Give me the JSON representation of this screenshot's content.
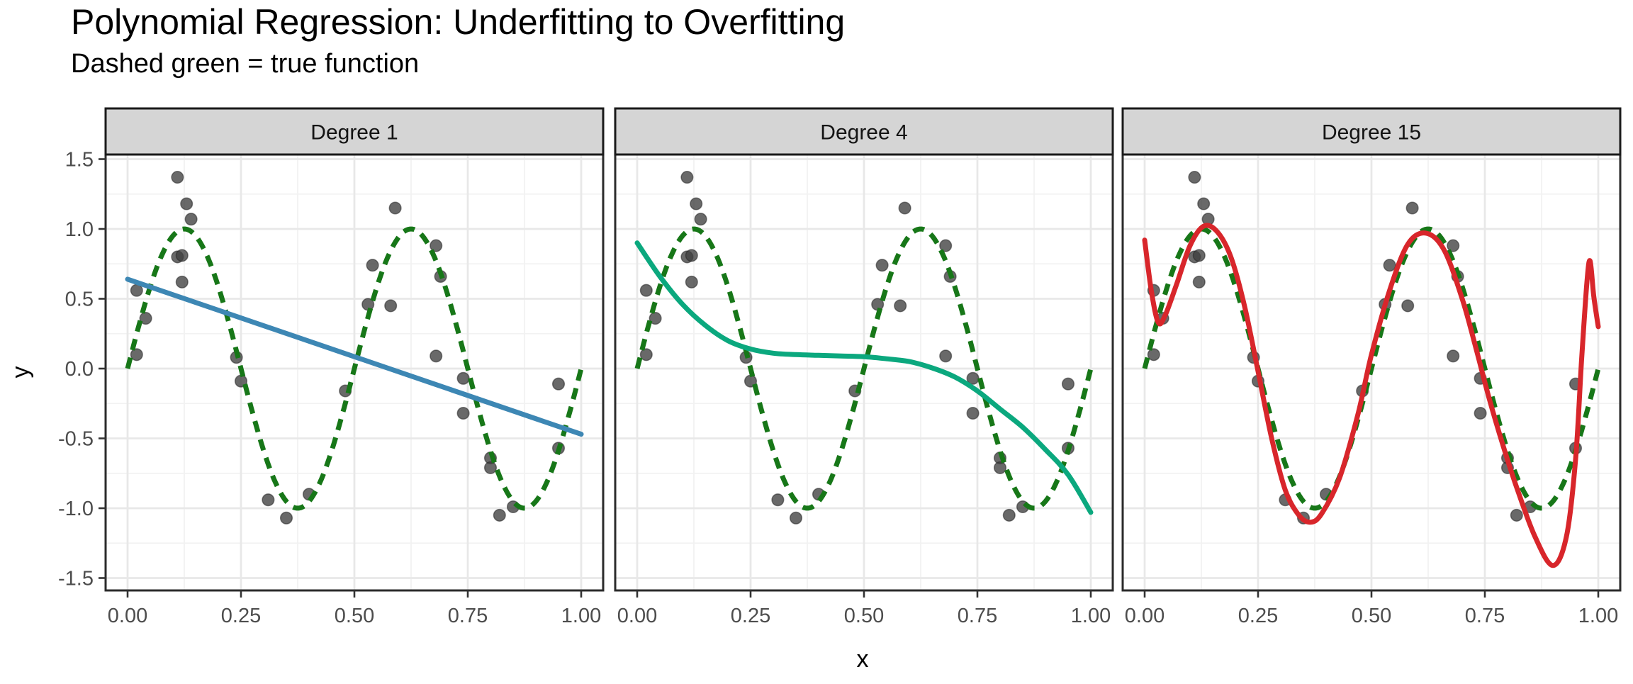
{
  "title": "Polynomial Regression: Underfitting to Overfitting",
  "subtitle": "Dashed green = true function",
  "chart_data": {
    "type": "scatter",
    "title": "Polynomial Regression: Underfitting to Overfitting",
    "subtitle": "Dashed green = true function",
    "xlabel": "x",
    "ylabel": "y",
    "xlim": [
      -0.05,
      1.05
    ],
    "ylim": [
      -1.59,
      1.53
    ],
    "grid": {
      "major_x_step": 0.25,
      "minor_x_step": 0.125,
      "major_y_step": 0.5,
      "minor_y_step": 0.25
    },
    "legend_position": "none",
    "x_ticks": {
      "values": [
        0,
        0.25,
        0.5,
        0.75,
        1.0
      ],
      "labels": [
        "0.00",
        "0.25",
        "0.50",
        "0.75",
        "1.00"
      ]
    },
    "y_ticks": {
      "values": [
        1.5,
        1.0,
        0.5,
        0.0,
        -0.5,
        -1.0,
        -1.5
      ],
      "labels": [
        "1.5",
        "1.0",
        "0.5",
        "0.0",
        "-0.5",
        "-1.0",
        "-1.5"
      ]
    },
    "points": [
      [
        0.02,
        0.56
      ],
      [
        0.04,
        0.36
      ],
      [
        0.02,
        0.1
      ],
      [
        0.11,
        1.37
      ],
      [
        0.13,
        1.18
      ],
      [
        0.14,
        1.07
      ],
      [
        0.11,
        0.8
      ],
      [
        0.12,
        0.81
      ],
      [
        0.12,
        0.62
      ],
      [
        0.24,
        0.08
      ],
      [
        0.25,
        -0.09
      ],
      [
        0.31,
        -0.94
      ],
      [
        0.35,
        -1.07
      ],
      [
        0.4,
        -0.9
      ],
      [
        0.48,
        -0.16
      ],
      [
        0.53,
        0.46
      ],
      [
        0.54,
        0.74
      ],
      [
        0.58,
        0.45
      ],
      [
        0.59,
        1.15
      ],
      [
        0.68,
        0.88
      ],
      [
        0.69,
        0.66
      ],
      [
        0.68,
        0.09
      ],
      [
        0.74,
        -0.07
      ],
      [
        0.74,
        -0.32
      ],
      [
        0.8,
        -0.64
      ],
      [
        0.8,
        -0.71
      ],
      [
        0.82,
        -1.05
      ],
      [
        0.85,
        -0.99
      ],
      [
        0.95,
        -0.11
      ],
      [
        0.95,
        -0.57
      ]
    ],
    "point_style": {
      "fill": "#3f3f3f",
      "stroke": "#262626",
      "opacity": 0.78,
      "radius": 8.3
    },
    "true_function": {
      "label": "sin(4*pi*x)",
      "color": "#177718",
      "dash": [
        16,
        11
      ],
      "width": 7
    },
    "facets": [
      {
        "label": "Degree 1",
        "fit_color": "#3d87b4",
        "fit_points": [
          [
            0,
            0.64
          ],
          [
            1,
            -0.47
          ]
        ]
      },
      {
        "label": "Degree 4",
        "fit_color": "#0ba87e",
        "fit_points": [
          [
            0,
            0.9
          ],
          [
            0.05,
            0.66
          ],
          [
            0.1,
            0.46
          ],
          [
            0.15,
            0.31
          ],
          [
            0.2,
            0.2
          ],
          [
            0.25,
            0.14
          ],
          [
            0.3,
            0.11
          ],
          [
            0.35,
            0.1
          ],
          [
            0.4,
            0.095
          ],
          [
            0.45,
            0.09
          ],
          [
            0.5,
            0.085
          ],
          [
            0.55,
            0.07
          ],
          [
            0.6,
            0.05
          ],
          [
            0.65,
            0.005
          ],
          [
            0.7,
            -0.06
          ],
          [
            0.75,
            -0.16
          ],
          [
            0.8,
            -0.29
          ],
          [
            0.85,
            -0.42
          ],
          [
            0.9,
            -0.58
          ],
          [
            0.95,
            -0.76
          ],
          [
            1.0,
            -1.03
          ]
        ]
      },
      {
        "label": "Degree 15",
        "fit_color": "#d8262b",
        "fit_points": [
          [
            0,
            0.92
          ],
          [
            0.015,
            0.55
          ],
          [
            0.03,
            0.33
          ],
          [
            0.045,
            0.38
          ],
          [
            0.07,
            0.6
          ],
          [
            0.1,
            0.88
          ],
          [
            0.13,
            1.02
          ],
          [
            0.16,
            0.98
          ],
          [
            0.19,
            0.8
          ],
          [
            0.22,
            0.45
          ],
          [
            0.25,
            -0.02
          ],
          [
            0.28,
            -0.5
          ],
          [
            0.31,
            -0.87
          ],
          [
            0.34,
            -1.05
          ],
          [
            0.365,
            -1.1
          ],
          [
            0.39,
            -1.04
          ],
          [
            0.43,
            -0.78
          ],
          [
            0.47,
            -0.33
          ],
          [
            0.5,
            0.1
          ],
          [
            0.54,
            0.56
          ],
          [
            0.58,
            0.89
          ],
          [
            0.62,
            0.97
          ],
          [
            0.66,
            0.85
          ],
          [
            0.7,
            0.5
          ],
          [
            0.73,
            0.15
          ],
          [
            0.76,
            -0.22
          ],
          [
            0.79,
            -0.55
          ],
          [
            0.82,
            -0.85
          ],
          [
            0.86,
            -1.2
          ],
          [
            0.9,
            -1.41
          ],
          [
            0.93,
            -1.2
          ],
          [
            0.95,
            -0.65
          ],
          [
            0.963,
            0.05
          ],
          [
            0.975,
            0.62
          ],
          [
            0.982,
            0.77
          ],
          [
            0.99,
            0.52
          ],
          [
            1.0,
            0.3
          ]
        ]
      }
    ],
    "colors": {
      "strip_background": "#d5d5d5",
      "strip_border": "#1a1a1a",
      "strip_text": "#141414",
      "panel_border": "#2b2b2b",
      "grid_major": "#e8e8e8",
      "grid_minor": "#f2f2f2",
      "tick_text": "#4d4d4d",
      "tick_mark": "#333333",
      "title_text": "#000000"
    }
  }
}
